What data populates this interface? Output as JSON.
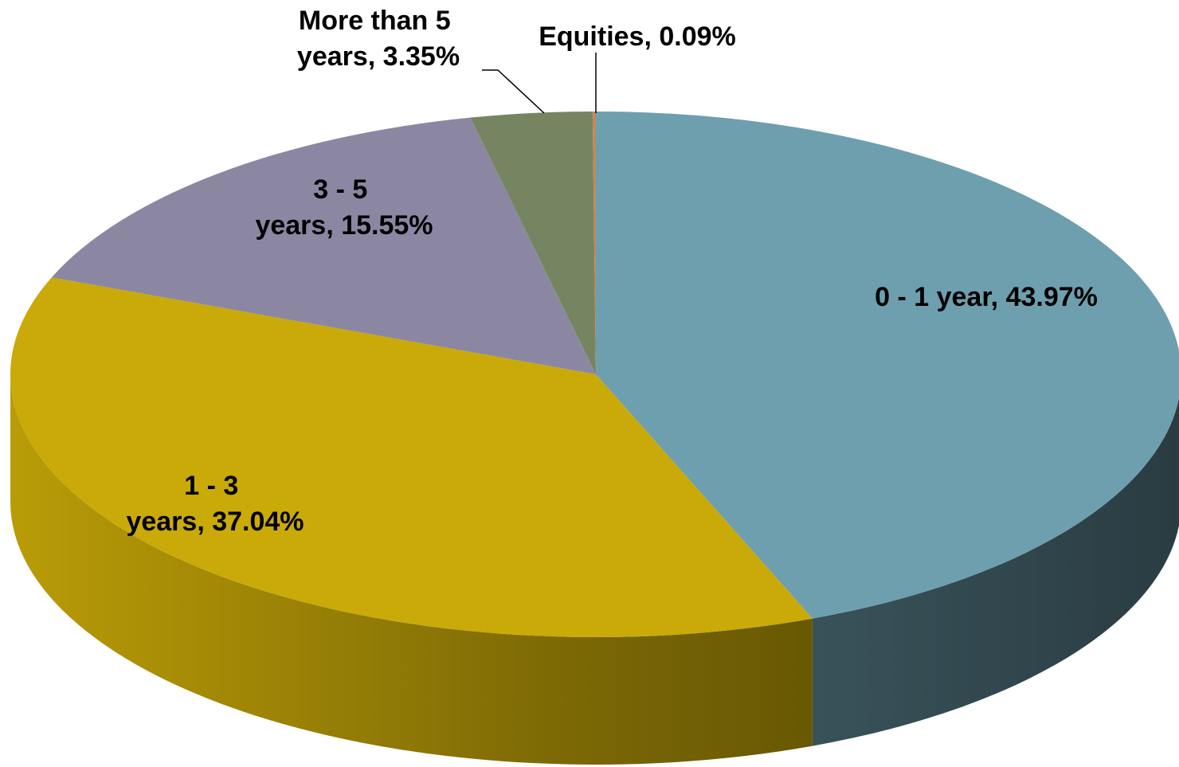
{
  "chart_data": {
    "type": "pie3d",
    "values": [
      43.97,
      37.04,
      15.55,
      3.35,
      0.09
    ],
    "value_labels": [
      "0 - 1 year, 43.97%",
      "1 - 3 years, 37.04%",
      "3 - 5 years, 15.55%",
      "More than 5 years, 3.35%",
      "Equities, 0.09%"
    ],
    "colors": [
      "#6e9fae",
      "#c9aa08",
      "#8b87a3",
      "#768561",
      "#c08a5a"
    ]
  }
}
